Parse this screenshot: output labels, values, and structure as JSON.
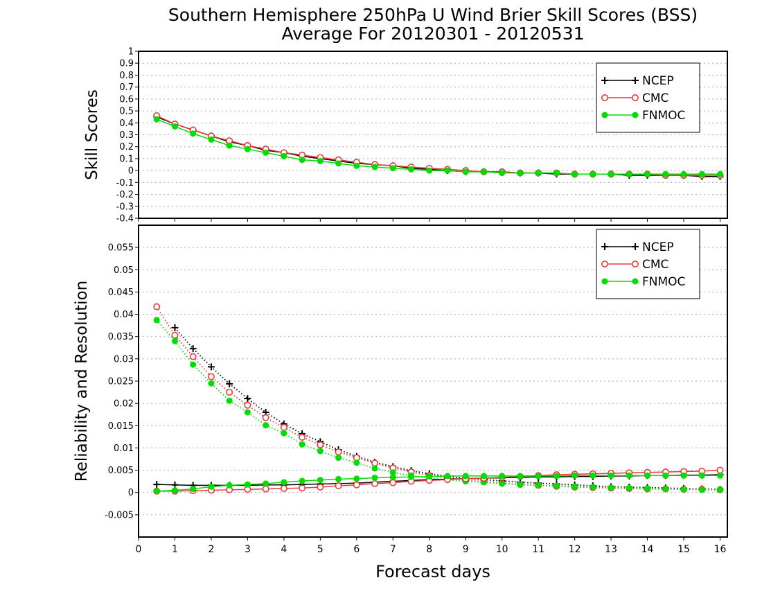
{
  "figure": {
    "title_line1": "Southern Hemisphere 250hPa U Wind Brier Skill Scores (BSS)",
    "title_line2": "Average For 20120301 - 20120531",
    "xlabel": "Forecast days"
  },
  "colors": {
    "NCEP": "#000000",
    "CMC": "#e83a3a",
    "FNMOC": "#00dd00"
  },
  "chart_data": [
    {
      "type": "line",
      "name": "skill-scores",
      "ylabel": "Skill Scores",
      "xlim": [
        0,
        16.2
      ],
      "ylim": [
        -0.4,
        1
      ],
      "x_ticks": [
        0,
        1,
        2,
        3,
        4,
        5,
        6,
        7,
        8,
        9,
        10,
        11,
        12,
        13,
        14,
        15,
        16
      ],
      "y_ticks": [
        -0.4,
        -0.3,
        -0.2,
        -0.1,
        0,
        0.1,
        0.2,
        0.3,
        0.4,
        0.5,
        0.6,
        0.7,
        0.8,
        0.9,
        1
      ],
      "y_tick_labels": [
        "-0.4",
        "-0.3",
        "-0.2",
        "-0.1",
        "0",
        "0.1",
        "0.2",
        "0.3",
        "0.4",
        "0.5",
        "0.6",
        "0.7",
        "0.8",
        "0.9",
        "1"
      ],
      "grid": true,
      "legend_position": "top-right",
      "x": [
        0.5,
        1,
        1.5,
        2,
        2.5,
        3,
        3.5,
        4,
        4.5,
        5,
        5.5,
        6,
        6.5,
        7,
        7.5,
        8,
        8.5,
        9,
        9.5,
        10,
        10.5,
        11,
        11.5,
        12,
        12.5,
        13,
        13.5,
        14,
        14.5,
        15,
        15.5,
        16
      ],
      "series": [
        {
          "name": "NCEP",
          "marker": "plus",
          "line": "solid",
          "values": [
            0.45,
            0.39,
            0.34,
            0.29,
            0.24,
            0.21,
            0.17,
            0.15,
            0.12,
            0.1,
            0.08,
            0.06,
            0.05,
            0.04,
            0.02,
            0.01,
            0.0,
            -0.01,
            -0.01,
            -0.01,
            -0.02,
            -0.02,
            -0.03,
            -0.03,
            -0.03,
            -0.03,
            -0.04,
            -0.04,
            -0.04,
            -0.04,
            -0.05,
            -0.05
          ]
        },
        {
          "name": "CMC",
          "marker": "open-circle",
          "line": "solid",
          "values": [
            0.46,
            0.39,
            0.34,
            0.29,
            0.25,
            0.21,
            0.18,
            0.15,
            0.13,
            0.11,
            0.09,
            0.07,
            0.05,
            0.04,
            0.03,
            0.02,
            0.01,
            0.0,
            -0.01,
            -0.01,
            -0.02,
            -0.02,
            -0.02,
            -0.03,
            -0.03,
            -0.03,
            -0.03,
            -0.03,
            -0.04,
            -0.04,
            -0.04,
            -0.04
          ]
        },
        {
          "name": "FNMOC",
          "marker": "filled-circle",
          "line": "solid",
          "values": [
            0.43,
            0.37,
            0.31,
            0.26,
            0.21,
            0.18,
            0.15,
            0.12,
            0.09,
            0.08,
            0.06,
            0.04,
            0.03,
            0.02,
            0.01,
            0.0,
            0.0,
            -0.01,
            -0.01,
            -0.02,
            -0.02,
            -0.02,
            -0.02,
            -0.03,
            -0.03,
            -0.03,
            -0.03,
            -0.03,
            -0.03,
            -0.03,
            -0.03,
            -0.03
          ]
        }
      ]
    },
    {
      "type": "line",
      "name": "reliability-resolution",
      "ylabel": "Reliability and Resolution",
      "xlim": [
        0,
        16.2
      ],
      "ylim": [
        -0.01,
        0.06
      ],
      "x_ticks": [
        0,
        1,
        2,
        3,
        4,
        5,
        6,
        7,
        8,
        9,
        10,
        11,
        12,
        13,
        14,
        15,
        16
      ],
      "y_ticks": [
        -0.005,
        0,
        0.005,
        0.01,
        0.015,
        0.02,
        0.025,
        0.03,
        0.035,
        0.04,
        0.045,
        0.05,
        0.055
      ],
      "y_tick_labels": [
        "-0.005",
        "0",
        "0.005",
        "0.01",
        "0.015",
        "0.02",
        "0.025",
        "0.03",
        "0.035",
        "0.04",
        "0.045",
        "0.05",
        "0.055"
      ],
      "grid": true,
      "legend_position": "top-right",
      "x": [
        0.5,
        1,
        1.5,
        2,
        2.5,
        3,
        3.5,
        4,
        4.5,
        5,
        5.5,
        6,
        6.5,
        7,
        7.5,
        8,
        8.5,
        9,
        9.5,
        10,
        10.5,
        11,
        11.5,
        12,
        12.5,
        13,
        13.5,
        14,
        14.5,
        15,
        15.5,
        16
      ],
      "series": [
        {
          "name": "NCEP",
          "role": "resolution",
          "marker": "plus",
          "line": "dotted",
          "values": [
            null,
            0.037,
            0.0323,
            0.0282,
            0.0244,
            0.0211,
            0.018,
            0.0154,
            0.0132,
            0.0114,
            0.0096,
            0.0081,
            0.0068,
            0.0058,
            0.0049,
            0.0042,
            0.0036,
            0.0032,
            0.0029,
            0.0026,
            0.0023,
            0.0021,
            0.0019,
            0.0017,
            0.0015,
            0.0013,
            0.0012,
            0.0011,
            0.001,
            0.0009,
            0.0008,
            0.0007
          ]
        },
        {
          "name": "CMC",
          "role": "resolution",
          "marker": "open-circle",
          "line": "dotted",
          "values": [
            0.0417,
            0.0353,
            0.0305,
            0.026,
            0.0225,
            0.0196,
            0.0168,
            0.0146,
            0.0124,
            0.0107,
            0.0091,
            0.0078,
            0.0066,
            0.0055,
            0.0046,
            0.0038,
            0.0032,
            0.0028,
            0.0024,
            0.0021,
            0.0018,
            0.0016,
            0.0014,
            0.0012,
            0.0011,
            0.001,
            0.0009,
            0.0008,
            0.0008,
            0.0007,
            0.0007,
            0.0006
          ]
        },
        {
          "name": "FNMOC",
          "role": "resolution",
          "marker": "filled-circle",
          "line": "dotted",
          "values": [
            0.0387,
            0.034,
            0.0287,
            0.0245,
            0.0206,
            0.018,
            0.0151,
            0.0133,
            0.0108,
            0.0093,
            0.0078,
            0.0067,
            0.0054,
            0.0045,
            0.0038,
            0.0032,
            0.0028,
            0.0025,
            0.0023,
            0.002,
            0.0018,
            0.0016,
            0.0015,
            0.0013,
            0.0012,
            0.0011,
            0.001,
            0.0009,
            0.0008,
            0.0007,
            0.0006,
            0.0006
          ]
        },
        {
          "name": "NCEP",
          "role": "reliability",
          "marker": "plus",
          "line": "solid",
          "values": [
            0.0018,
            0.0017,
            0.0016,
            0.0016,
            0.0016,
            0.0016,
            0.0017,
            0.0017,
            0.0018,
            0.0019,
            0.002,
            0.0021,
            0.0023,
            0.0025,
            0.0027,
            0.0029,
            0.003,
            0.0031,
            0.0032,
            0.0033,
            0.0034,
            0.0035,
            0.0035,
            0.0036,
            0.0036,
            0.0037,
            0.0037,
            0.0038,
            0.0038,
            0.0039,
            0.0039,
            0.004
          ]
        },
        {
          "name": "CMC",
          "role": "reliability",
          "marker": "open-circle",
          "line": "solid",
          "values": [
            0.0003,
            0.0003,
            0.0004,
            0.0005,
            0.0006,
            0.0007,
            0.0008,
            0.0009,
            0.001,
            0.0012,
            0.0015,
            0.0017,
            0.002,
            0.0022,
            0.0025,
            0.0027,
            0.0029,
            0.0031,
            0.0032,
            0.0034,
            0.0036,
            0.0038,
            0.004,
            0.0041,
            0.0042,
            0.0043,
            0.0044,
            0.0045,
            0.0046,
            0.0047,
            0.0048,
            0.005
          ]
        },
        {
          "name": "FNMOC",
          "role": "reliability",
          "marker": "filled-circle",
          "line": "solid",
          "values": [
            0.0003,
            0.0005,
            0.0008,
            0.0013,
            0.0016,
            0.0018,
            0.002,
            0.0023,
            0.0026,
            0.0028,
            0.003,
            0.0031,
            0.0033,
            0.0034,
            0.0035,
            0.0036,
            0.0037,
            0.0037,
            0.0037,
            0.0037,
            0.0037,
            0.0037,
            0.0037,
            0.0038,
            0.0038,
            0.0038,
            0.0038,
            0.0038,
            0.0038,
            0.0038,
            0.0038,
            0.0038
          ]
        }
      ]
    }
  ]
}
